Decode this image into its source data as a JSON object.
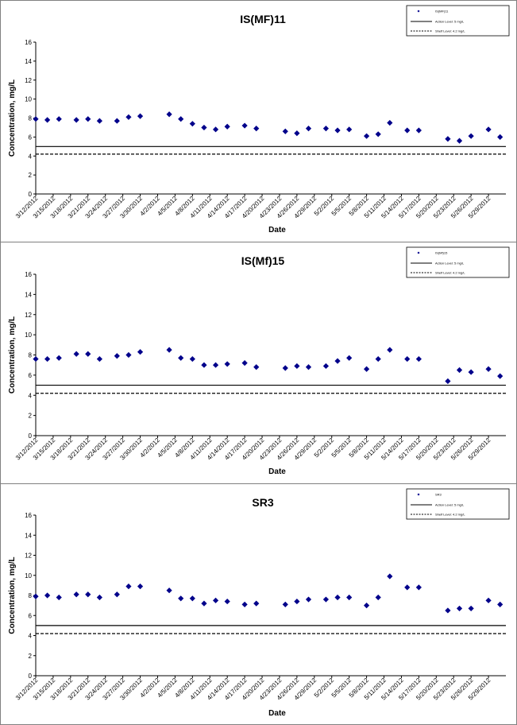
{
  "chart_data": [
    {
      "type": "scatter",
      "title": "IS(MF)11",
      "xlabel": "Date",
      "ylabel": "Concentration, mg/L",
      "ylim": [
        0,
        16
      ],
      "yticks": [
        "0",
        "2",
        "4",
        "6",
        "8",
        "10",
        "12",
        "14",
        "16"
      ],
      "xticks": [
        "3/12/2012",
        "3/15/2012",
        "3/18/2012",
        "3/21/2012",
        "3/24/2012",
        "3/27/2012",
        "3/30/2012",
        "4/2/2012",
        "4/5/2012",
        "4/8/2012",
        "4/11/2012",
        "4/14/2012",
        "4/17/2012",
        "4/20/2012",
        "4/23/2012",
        "4/26/2012",
        "4/29/2012",
        "5/2/2012",
        "5/5/2012",
        "5/8/2012",
        "5/11/2012",
        "5/14/2012",
        "5/17/2012",
        "5/20/2012",
        "5/23/2012",
        "5/26/2012",
        "5/29/2012"
      ],
      "grid": false,
      "legend_position": "top-right",
      "legend": [
        "IS(MF)11",
        "Action Level: 5 mg/L",
        "Shelf Level: 4.2 mg/L"
      ],
      "reference_lines": [
        {
          "name": "Action Level: 5 mg/L",
          "value": 5.0,
          "style": "solid"
        },
        {
          "name": "Shelf Level: 4.2 mg/L",
          "value": 4.2,
          "style": "dashed"
        }
      ],
      "series": [
        {
          "name": "IS(MF)11",
          "color": "#00008B",
          "points": [
            [
              "3/12/2012",
              7.9
            ],
            [
              "3/14/2012",
              7.8
            ],
            [
              "3/16/2012",
              7.9
            ],
            [
              "3/19/2012",
              7.8
            ],
            [
              "3/21/2012",
              7.9
            ],
            [
              "3/23/2012",
              7.7
            ],
            [
              "3/26/2012",
              7.7
            ],
            [
              "3/28/2012",
              8.1
            ],
            [
              "3/30/2012",
              8.2
            ],
            [
              "4/4/2012",
              8.4
            ],
            [
              "4/6/2012",
              7.9
            ],
            [
              "4/8/2012",
              7.4
            ],
            [
              "4/10/2012",
              7.0
            ],
            [
              "4/12/2012",
              6.8
            ],
            [
              "4/14/2012",
              7.1
            ],
            [
              "4/17/2012",
              7.2
            ],
            [
              "4/19/2012",
              6.9
            ],
            [
              "4/24/2012",
              6.6
            ],
            [
              "4/26/2012",
              6.4
            ],
            [
              "4/28/2012",
              6.9
            ],
            [
              "5/1/2012",
              6.9
            ],
            [
              "5/3/2012",
              6.7
            ],
            [
              "5/5/2012",
              6.8
            ],
            [
              "5/8/2012",
              6.1
            ],
            [
              "5/10/2012",
              6.3
            ],
            [
              "5/12/2012",
              7.5
            ],
            [
              "5/15/2012",
              6.7
            ],
            [
              "5/17/2012",
              6.7
            ],
            [
              "5/22/2012",
              5.8
            ],
            [
              "5/24/2012",
              5.6
            ],
            [
              "5/26/2012",
              6.1
            ],
            [
              "5/29/2012",
              6.8
            ],
            [
              "5/31/2012",
              6.0
            ]
          ]
        }
      ]
    },
    {
      "type": "scatter",
      "title": "IS(Mf)15",
      "xlabel": "Date",
      "ylabel": "Concentration, mg/L",
      "ylim": [
        0,
        16
      ],
      "yticks": [
        "0",
        "2",
        "4",
        "6",
        "8",
        "10",
        "12",
        "14",
        "16"
      ],
      "xticks": [
        "3/12/2012",
        "3/15/2012",
        "3/18/2012",
        "3/21/2012",
        "3/24/2012",
        "3/27/2012",
        "3/30/2012",
        "4/2/2012",
        "4/5/2012",
        "4/8/2012",
        "4/11/2012",
        "4/14/2012",
        "4/17/2012",
        "4/20/2012",
        "4/23/2012",
        "4/26/2012",
        "4/29/2012",
        "5/2/2012",
        "5/5/2012",
        "5/8/2012",
        "5/11/2012",
        "5/14/2012",
        "5/17/2012",
        "5/20/2012",
        "5/23/2012",
        "5/26/2012",
        "5/29/2012"
      ],
      "grid": false,
      "legend_position": "top-right",
      "legend": [
        "IS(Mf)15",
        "Action Level: 5 mg/L",
        "Shelf Level: 4.2 mg/L"
      ],
      "reference_lines": [
        {
          "name": "Action Level: 5 mg/L",
          "value": 5.0,
          "style": "solid"
        },
        {
          "name": "Shelf Level: 4.2 mg/L",
          "value": 4.2,
          "style": "dashed"
        }
      ],
      "series": [
        {
          "name": "IS(Mf)15",
          "color": "#00008B",
          "points": [
            [
              "3/12/2012",
              7.6
            ],
            [
              "3/14/2012",
              7.6
            ],
            [
              "3/16/2012",
              7.7
            ],
            [
              "3/19/2012",
              8.1
            ],
            [
              "3/21/2012",
              8.1
            ],
            [
              "3/23/2012",
              7.6
            ],
            [
              "3/26/2012",
              7.9
            ],
            [
              "3/28/2012",
              8.0
            ],
            [
              "3/30/2012",
              8.3
            ],
            [
              "4/4/2012",
              8.5
            ],
            [
              "4/6/2012",
              7.7
            ],
            [
              "4/8/2012",
              7.6
            ],
            [
              "4/10/2012",
              7.0
            ],
            [
              "4/12/2012",
              7.0
            ],
            [
              "4/14/2012",
              7.1
            ],
            [
              "4/17/2012",
              7.2
            ],
            [
              "4/19/2012",
              6.8
            ],
            [
              "4/24/2012",
              6.7
            ],
            [
              "4/26/2012",
              6.9
            ],
            [
              "4/28/2012",
              6.8
            ],
            [
              "5/1/2012",
              6.9
            ],
            [
              "5/3/2012",
              7.4
            ],
            [
              "5/5/2012",
              7.7
            ],
            [
              "5/8/2012",
              6.6
            ],
            [
              "5/10/2012",
              7.6
            ],
            [
              "5/12/2012",
              8.5
            ],
            [
              "5/15/2012",
              7.6
            ],
            [
              "5/17/2012",
              7.6
            ],
            [
              "5/22/2012",
              5.4
            ],
            [
              "5/24/2012",
              6.5
            ],
            [
              "5/26/2012",
              6.3
            ],
            [
              "5/29/2012",
              6.6
            ],
            [
              "5/31/2012",
              5.9
            ]
          ]
        }
      ]
    },
    {
      "type": "scatter",
      "title": "SR3",
      "xlabel": "Date",
      "ylabel": "Concentration, mg/L",
      "ylim": [
        0,
        16
      ],
      "yticks": [
        "0",
        "2",
        "4",
        "6",
        "8",
        "10",
        "12",
        "14",
        "16"
      ],
      "xticks": [
        "3/12/2012",
        "3/15/2012",
        "3/18/2012",
        "3/21/2012",
        "3/24/2012",
        "3/27/2012",
        "3/30/2012",
        "4/2/2012",
        "4/5/2012",
        "4/8/2012",
        "4/11/2012",
        "4/14/2012",
        "4/17/2012",
        "4/20/2012",
        "4/23/2012",
        "4/26/2012",
        "4/29/2012",
        "5/2/2012",
        "5/5/2012",
        "5/8/2012",
        "5/11/2012",
        "5/14/2012",
        "5/17/2012",
        "5/20/2012",
        "5/23/2012",
        "5/26/2012",
        "5/29/2012"
      ],
      "grid": false,
      "legend_position": "top-right",
      "legend": [
        "SR3",
        "Action Level: 5 mg/L",
        "Shelf Level: 4.2 mg/L"
      ],
      "reference_lines": [
        {
          "name": "Action Level: 5 mg/L",
          "value": 5.0,
          "style": "solid"
        },
        {
          "name": "Shelf Level: 4.2 mg/L",
          "value": 4.2,
          "style": "dashed"
        }
      ],
      "series": [
        {
          "name": "SR3",
          "color": "#00008B",
          "points": [
            [
              "3/12/2012",
              7.9
            ],
            [
              "3/14/2012",
              8.0
            ],
            [
              "3/16/2012",
              7.8
            ],
            [
              "3/19/2012",
              8.1
            ],
            [
              "3/21/2012",
              8.1
            ],
            [
              "3/23/2012",
              7.8
            ],
            [
              "3/26/2012",
              8.1
            ],
            [
              "3/28/2012",
              8.9
            ],
            [
              "3/30/2012",
              8.9
            ],
            [
              "4/4/2012",
              8.5
            ],
            [
              "4/6/2012",
              7.7
            ],
            [
              "4/8/2012",
              7.7
            ],
            [
              "4/10/2012",
              7.2
            ],
            [
              "4/12/2012",
              7.5
            ],
            [
              "4/14/2012",
              7.4
            ],
            [
              "4/17/2012",
              7.1
            ],
            [
              "4/19/2012",
              7.2
            ],
            [
              "4/24/2012",
              7.1
            ],
            [
              "4/26/2012",
              7.4
            ],
            [
              "4/28/2012",
              7.6
            ],
            [
              "5/1/2012",
              7.6
            ],
            [
              "5/3/2012",
              7.8
            ],
            [
              "5/5/2012",
              7.8
            ],
            [
              "5/8/2012",
              7.0
            ],
            [
              "5/10/2012",
              7.8
            ],
            [
              "5/12/2012",
              9.9
            ],
            [
              "5/15/2012",
              8.8
            ],
            [
              "5/17/2012",
              8.8
            ],
            [
              "5/22/2012",
              6.5
            ],
            [
              "5/24/2012",
              6.7
            ],
            [
              "5/26/2012",
              6.7
            ],
            [
              "5/29/2012",
              7.5
            ],
            [
              "5/31/2012",
              7.1
            ]
          ]
        }
      ]
    }
  ],
  "colors": {
    "marker": "#00008B",
    "frame": "#808080",
    "reference": "#000000"
  }
}
